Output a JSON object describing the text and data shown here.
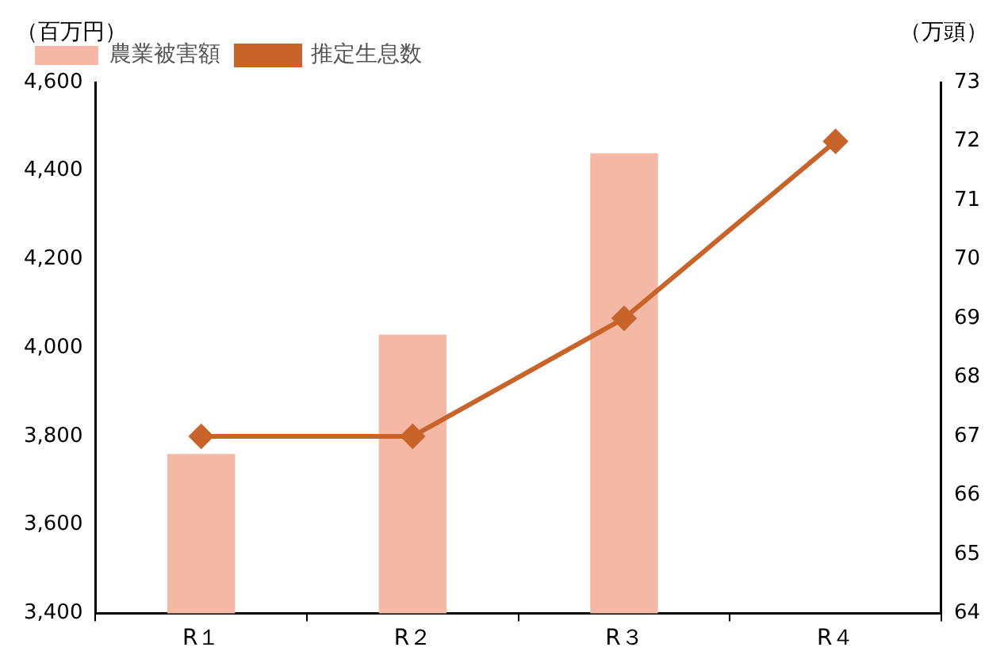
{
  "chart_data": {
    "type": "bar",
    "ylabel": "（百万円）",
    "y2label": "（万頭）",
    "categories": [
      "R１",
      "R２",
      "R３",
      "R４"
    ],
    "series": [
      {
        "name": "農業被害額",
        "color": "#f4b8a4",
        "values": [
          3760,
          4030,
          4440,
          null
        ]
      },
      {
        "name": "推定生息数",
        "type": "line",
        "axis": "y2",
        "color": "#c8642a",
        "marker": "diamond",
        "values": [
          67,
          67,
          69,
          72
        ]
      }
    ],
    "ylim": [
      3400,
      4600
    ],
    "yticks": [
      {
        "value": 3400,
        "label": "3,400"
      },
      {
        "value": 3600,
        "label": "3,600"
      },
      {
        "value": 3800,
        "label": "3,800"
      },
      {
        "value": 4000,
        "label": "4,000"
      },
      {
        "value": 4200,
        "label": "4,200"
      },
      {
        "value": 4400,
        "label": "4,400"
      },
      {
        "value": 4600,
        "label": "4,600"
      }
    ],
    "y2lim": [
      64,
      73
    ],
    "y2ticks": [
      64,
      65,
      66,
      67,
      68,
      69,
      70,
      71,
      72,
      73
    ],
    "grid": false,
    "legend": "top left"
  }
}
